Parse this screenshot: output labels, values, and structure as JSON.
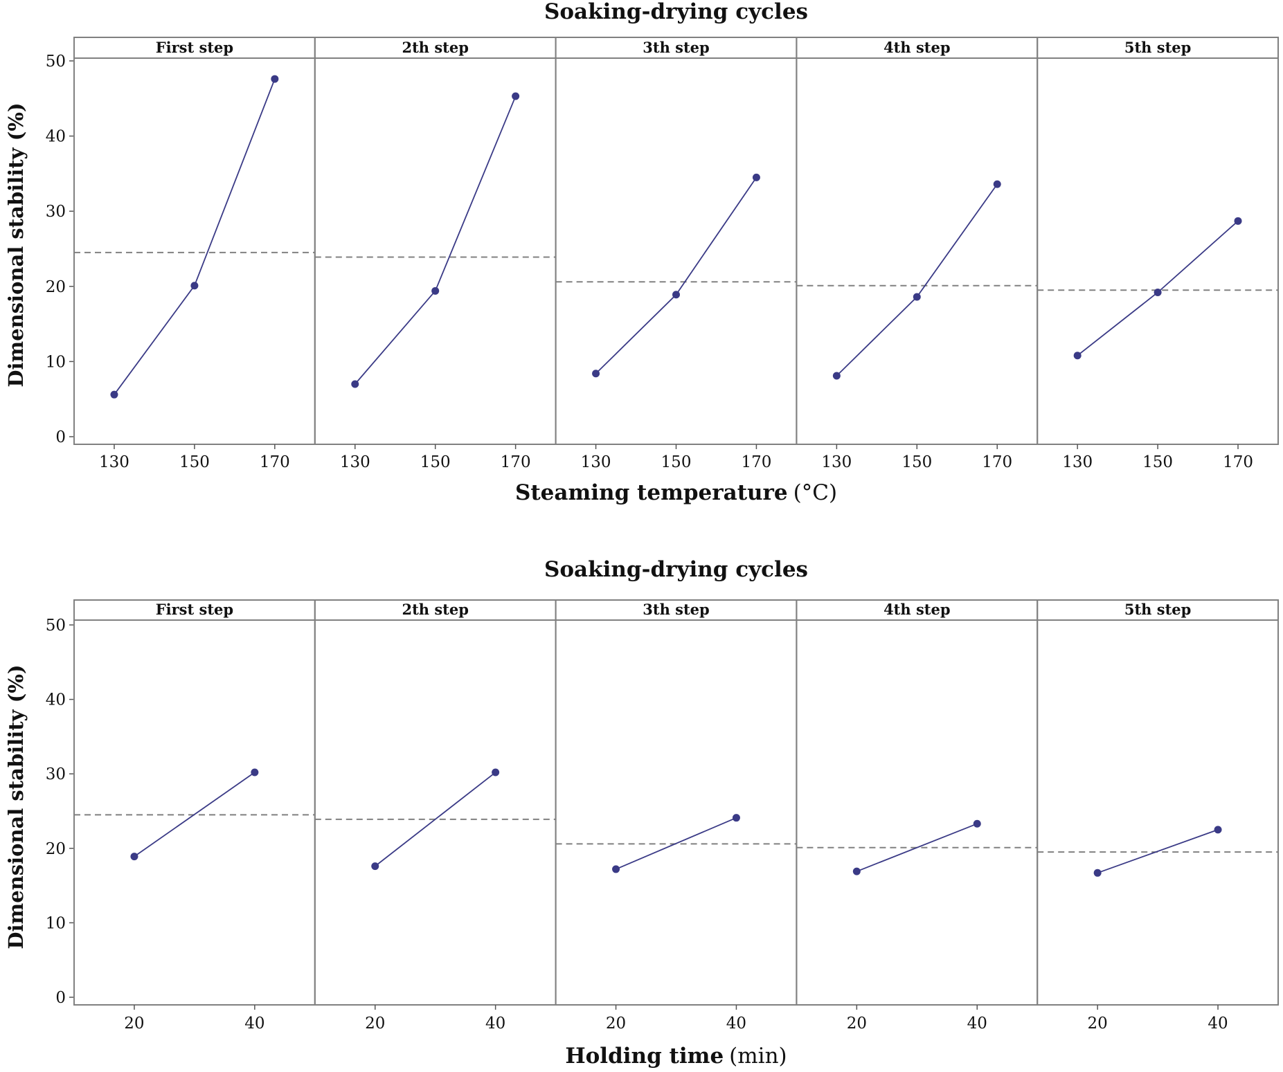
{
  "chart_data": [
    {
      "type": "line",
      "title": "Soaking-drying cycles",
      "xlabel": "Steaming temperature",
      "xlabel_unit": "(°C)",
      "ylabel": "Dimensional stability (%)",
      "ylim": [
        0,
        50
      ],
      "yticks": [
        "0",
        "10",
        "20",
        "30",
        "40",
        "50"
      ],
      "x": [
        130,
        150,
        170
      ],
      "xticks": [
        "130",
        "150",
        "170"
      ],
      "xlim": [
        120,
        180
      ],
      "grid": false,
      "colors": {
        "series": "#3a3a86",
        "mean_line": "#808080",
        "panel_border": "#808080"
      },
      "panels": [
        {
          "label": "First step",
          "values": [
            5.6,
            20.1,
            47.6
          ],
          "mean": 24.5
        },
        {
          "label": "2th step",
          "values": [
            7.0,
            19.4,
            45.3
          ],
          "mean": 23.9
        },
        {
          "label": "3th step",
          "values": [
            8.4,
            18.9,
            34.5
          ],
          "mean": 20.6
        },
        {
          "label": "4th step",
          "values": [
            8.1,
            18.6,
            33.6
          ],
          "mean": 20.1
        },
        {
          "label": "5th step",
          "values": [
            10.8,
            19.2,
            28.7
          ],
          "mean": 19.5
        }
      ]
    },
    {
      "type": "line",
      "title": "Soaking-drying cycles",
      "xlabel": "Holding time",
      "xlabel_unit": "(min)",
      "ylabel": "Dimensional stability (%)",
      "ylim": [
        0,
        50
      ],
      "yticks": [
        "0",
        "10",
        "20",
        "30",
        "40",
        "50"
      ],
      "x": [
        20,
        40
      ],
      "xticks": [
        "20",
        "40"
      ],
      "xlim": [
        10,
        50
      ],
      "grid": false,
      "colors": {
        "series": "#3a3a86",
        "mean_line": "#808080",
        "panel_border": "#808080"
      },
      "panels": [
        {
          "label": "First step",
          "values": [
            18.9,
            30.2
          ],
          "mean": 24.5
        },
        {
          "label": "2th step",
          "values": [
            17.6,
            30.2
          ],
          "mean": 23.9
        },
        {
          "label": "3th step",
          "values": [
            17.2,
            24.1
          ],
          "mean": 20.6
        },
        {
          "label": "4th step",
          "values": [
            16.9,
            23.3
          ],
          "mean": 20.1
        },
        {
          "label": "5th step",
          "values": [
            16.7,
            22.5
          ],
          "mean": 19.5
        }
      ]
    }
  ]
}
